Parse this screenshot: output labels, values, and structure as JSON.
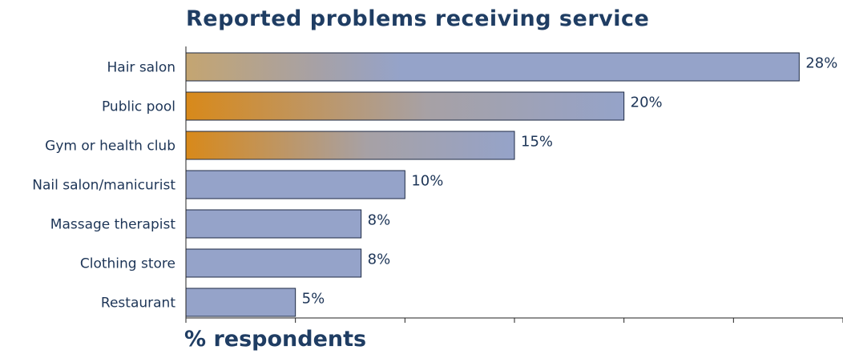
{
  "chart_data": {
    "type": "bar",
    "orientation": "horizontal",
    "title": "Reported problems receiving service",
    "xlabel": "% respondents",
    "ylabel": "",
    "categories": [
      "Hair salon",
      "Public pool",
      "Gym or health club",
      "Nail salon/manicurist",
      "Massage therapist",
      "Clothing store",
      "Restaurant"
    ],
    "values": [
      28,
      20,
      15,
      10,
      8,
      8,
      5
    ],
    "value_labels": [
      "28%",
      "20%",
      "15%",
      "10%",
      "8%",
      "8%",
      "5%"
    ],
    "xlim": [
      0,
      30
    ],
    "x_ticks": [
      0,
      5,
      10,
      15,
      20,
      25,
      30
    ],
    "grid": false,
    "legend": "none",
    "colors": {
      "bar_fill": "#95a3c9",
      "bar_gradient_accent": "#d8891a",
      "bar_stroke": "#1d2a44",
      "text": "#1d3557",
      "title": "#1f3d63"
    }
  }
}
